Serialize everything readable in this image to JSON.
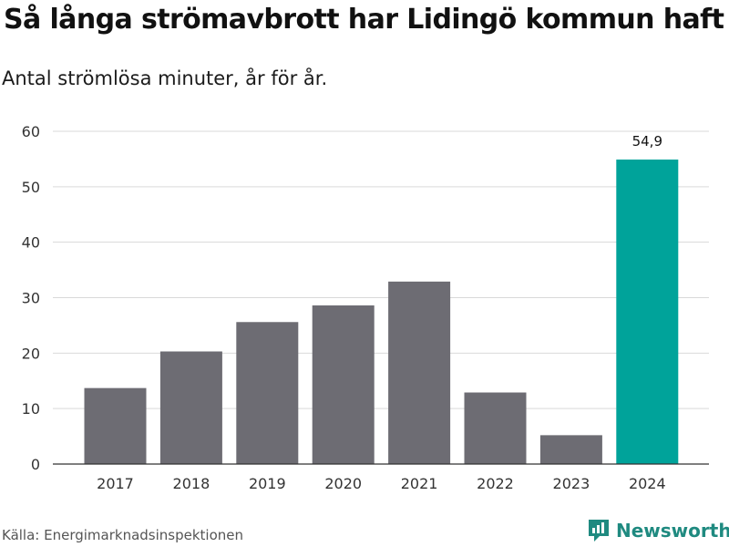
{
  "title": "Så långa strömavbrott har Lidingö kommun haft",
  "subtitle": "Antal strömlösa minuter, år för år.",
  "source": "Källa: Energimarknadsinspektionen",
  "brand": "Newsworthy",
  "colors": {
    "bar_default": "#6d6c73",
    "bar_highlight": "#00a39a",
    "gridline": "#d9d9d9",
    "axis": "#333333",
    "brand": "#1f8a80"
  },
  "chart_data": {
    "type": "bar",
    "title": "Så långa strömavbrott har Lidingö kommun haft",
    "subtitle": "Antal strömlösa minuter, år för år.",
    "categories": [
      "2017",
      "2018",
      "2019",
      "2020",
      "2021",
      "2022",
      "2023",
      "2024"
    ],
    "values": [
      13.7,
      20.3,
      25.6,
      28.6,
      32.9,
      12.9,
      5.2,
      54.9
    ],
    "highlight_index": 7,
    "data_labels": [
      {
        "index": 7,
        "text": "54,9"
      }
    ],
    "ylim": [
      0,
      60
    ],
    "yticks": [
      0,
      10,
      20,
      30,
      40,
      50,
      60
    ],
    "xlabel": "",
    "ylabel": "",
    "grid": true,
    "legend": "none"
  }
}
